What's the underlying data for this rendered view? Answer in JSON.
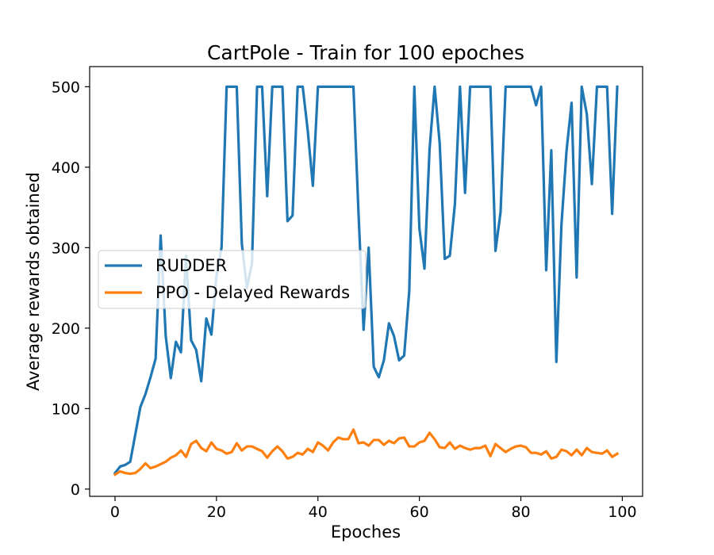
{
  "chart_data": {
    "type": "line",
    "title": "CartPole - Train for 100 epoches",
    "xlabel": "Epoches",
    "ylabel": "Average rewards obtained",
    "xlim": [
      -5,
      104
    ],
    "ylim": [
      -9,
      525
    ],
    "xticks": [
      0,
      20,
      40,
      60,
      80,
      100
    ],
    "yticks": [
      0,
      100,
      200,
      300,
      400,
      500
    ],
    "grid": false,
    "legend_position": "center-left",
    "x": [
      0,
      1,
      2,
      3,
      4,
      5,
      6,
      7,
      8,
      9,
      10,
      11,
      12,
      13,
      14,
      15,
      16,
      17,
      18,
      19,
      20,
      21,
      22,
      23,
      24,
      25,
      26,
      27,
      28,
      29,
      30,
      31,
      32,
      33,
      34,
      35,
      36,
      37,
      38,
      39,
      40,
      41,
      42,
      43,
      44,
      45,
      46,
      47,
      48,
      49,
      50,
      51,
      52,
      53,
      54,
      55,
      56,
      57,
      58,
      59,
      60,
      61,
      62,
      63,
      64,
      65,
      66,
      67,
      68,
      69,
      70,
      71,
      72,
      73,
      74,
      75,
      76,
      77,
      78,
      79,
      80,
      81,
      82,
      83,
      84,
      85,
      86,
      87,
      88,
      89,
      90,
      91,
      92,
      93,
      94,
      95,
      96,
      97,
      98,
      99
    ],
    "series": [
      {
        "name": "RUDDER",
        "color": "#1f77b4",
        "values": [
          20,
          28,
          30,
          34,
          68,
          102,
          118,
          139,
          162,
          315,
          190,
          138,
          183,
          170,
          290,
          185,
          173,
          134,
          212,
          192,
          265,
          300,
          500,
          500,
          500,
          305,
          250,
          280,
          500,
          500,
          364,
          500,
          500,
          500,
          333,
          340,
          500,
          500,
          445,
          377,
          500,
          500,
          500,
          500,
          500,
          500,
          500,
          500,
          343,
          198,
          300,
          152,
          139,
          160,
          206,
          190,
          160,
          166,
          246,
          500,
          324,
          274,
          422,
          500,
          430,
          286,
          290,
          354,
          500,
          368,
          500,
          500,
          500,
          500,
          500,
          296,
          344,
          500,
          500,
          500,
          500,
          500,
          500,
          477,
          500,
          272,
          421,
          158,
          328,
          420,
          480,
          263,
          500,
          466,
          379,
          500,
          500,
          500,
          342,
          500
        ]
      },
      {
        "name": "PPO - Delayed Rewards",
        "color": "#ff7f0e",
        "values": [
          18,
          22,
          20,
          19,
          20,
          25,
          32,
          26,
          28,
          31,
          34,
          39,
          42,
          48,
          40,
          56,
          60,
          51,
          47,
          58,
          50,
          48,
          44,
          46,
          57,
          48,
          53,
          53,
          50,
          47,
          39,
          47,
          53,
          47,
          38,
          40,
          45,
          43,
          50,
          46,
          58,
          54,
          48,
          58,
          64,
          62,
          62,
          74,
          57,
          58,
          54,
          61,
          61,
          55,
          60,
          57,
          63,
          64,
          53,
          53,
          58,
          60,
          70,
          62,
          52,
          51,
          58,
          50,
          54,
          51,
          49,
          51,
          51,
          54,
          41,
          56,
          51,
          46,
          50,
          53,
          54,
          52,
          45,
          45,
          43,
          47,
          38,
          40,
          49,
          47,
          42,
          49,
          42,
          51,
          46,
          45,
          44,
          48,
          40,
          44
        ]
      }
    ]
  }
}
